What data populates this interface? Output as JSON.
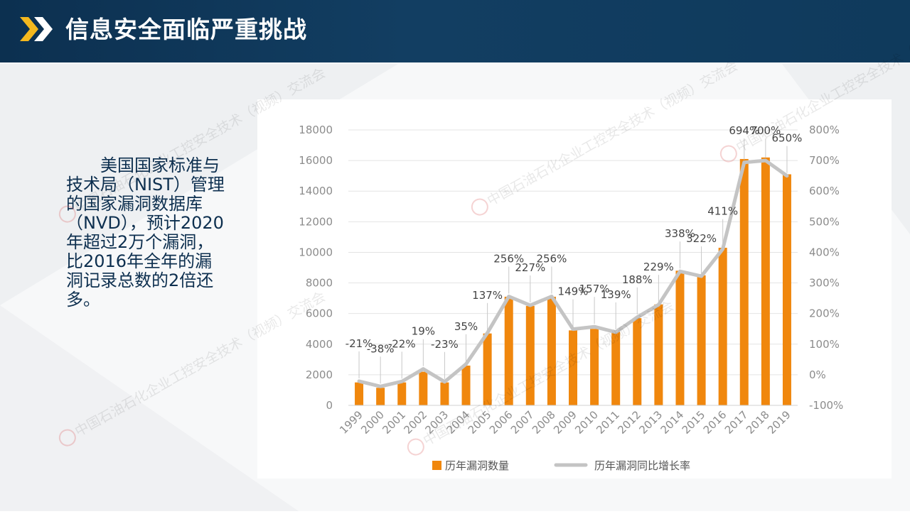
{
  "header": {
    "title": "信息安全面临严重挑战"
  },
  "description": "美国国家标准与技术局（NIST）管理的国家漏洞数据库（NVD），预计2020年超过2万个漏洞，比2016年全年的漏洞记录总数的2倍还多。",
  "watermark": "中国石油石化企业工控安全技术（视频）交流会",
  "colors": {
    "header_bg": "#0f3a5c",
    "accent_orange": "#f0870d",
    "accent_yellow": "#f4b81e",
    "line_gray": "#c4c4c4"
  },
  "chart_data": {
    "type": "bar",
    "categories": [
      "1999",
      "2000",
      "2001",
      "2002",
      "2003",
      "2004",
      "2005",
      "2006",
      "2007",
      "2008",
      "2009",
      "2010",
      "2011",
      "2012",
      "2013",
      "2014",
      "2015",
      "2016",
      "2017",
      "2018",
      "2019"
    ],
    "series": [
      {
        "name": "历年漏洞数量",
        "type": "bar",
        "axis": "left",
        "color": "#f0870d",
        "values": [
          1500,
          1150,
          1500,
          2200,
          1500,
          2600,
          4700,
          7100,
          6500,
          7100,
          4900,
          5000,
          4800,
          5700,
          6600,
          8800,
          8500,
          10300,
          16100,
          16200,
          15100
        ]
      },
      {
        "name": "历年漏洞同比增长率",
        "type": "line",
        "axis": "right",
        "color": "#c4c4c4",
        "values": [
          -21,
          -38,
          -22,
          19,
          -23,
          35,
          137,
          256,
          227,
          256,
          149,
          157,
          139,
          188,
          229,
          338,
          322,
          411,
          694,
          700,
          650
        ],
        "labels": [
          "-21%",
          "-38%",
          "-22%",
          "19%",
          "-23%",
          "35%",
          "137%",
          "256%",
          "227%",
          "256%",
          "149%",
          "157%",
          "139%",
          "188%",
          "229%",
          "338%",
          "322%",
          "411%",
          "694%",
          "700%",
          "650%"
        ]
      }
    ],
    "y_left": {
      "min": 0,
      "max": 18000,
      "ticks": [
        "0",
        "2000",
        "4000",
        "6000",
        "8000",
        "10000",
        "12000",
        "14000",
        "16000",
        "18000"
      ]
    },
    "y_right": {
      "min": -100,
      "max": 800,
      "ticks": [
        "-100%",
        "0%",
        "100%",
        "200%",
        "300%",
        "400%",
        "500%",
        "600%",
        "700%",
        "800%"
      ]
    },
    "grid": true,
    "legend_position": "bottom"
  }
}
